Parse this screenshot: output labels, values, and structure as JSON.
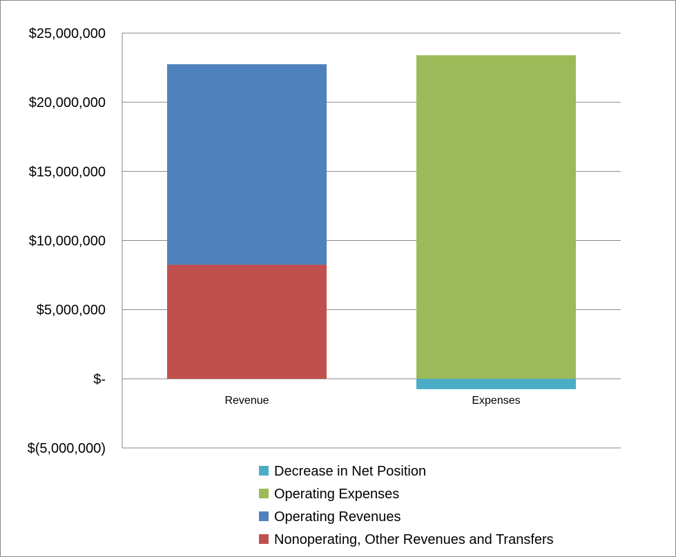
{
  "chart_data": {
    "type": "bar",
    "stacked": true,
    "title": "",
    "xlabel": "",
    "ylabel": "",
    "categories": [
      "Revenue",
      "Expenses"
    ],
    "ylim": [
      -5000000,
      25000000
    ],
    "yticks": [
      -5000000,
      0,
      5000000,
      10000000,
      15000000,
      20000000,
      25000000
    ],
    "ytick_labels": [
      "$(5,000,000)",
      "$-",
      "$5,000,000",
      "$10,000,000",
      "$15,000,000",
      "$20,000,000",
      "$25,000,000"
    ],
    "grid": true,
    "legend_position": "bottom",
    "series": [
      {
        "name": "Nonoperating, Other Revenues and Transfers",
        "color": "#C0504D",
        "values": [
          8250000,
          0
        ]
      },
      {
        "name": "Operating Revenues",
        "color": "#4F81BD",
        "values": [
          14500000,
          0
        ]
      },
      {
        "name": "Operating Expenses",
        "color": "#9BBB59",
        "values": [
          0,
          23400000
        ]
      },
      {
        "name": "Decrease in Net Position",
        "color": "#4BACC6",
        "values": [
          0,
          -750000
        ]
      }
    ],
    "legend_order": [
      "Decrease in Net Position",
      "Operating Expenses",
      "Operating Revenues",
      "Nonoperating, Other Revenues and Transfers"
    ]
  }
}
